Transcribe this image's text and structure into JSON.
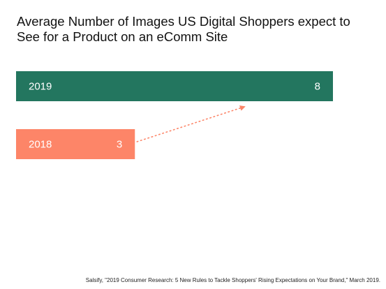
{
  "chart_data": {
    "type": "bar",
    "orientation": "horizontal",
    "title": "Average Number of Images US Digital Shoppers expect to See for a Product on an eComm Site",
    "categories": [
      "2019",
      "2018"
    ],
    "values": [
      8,
      3
    ],
    "xlim": [
      0,
      8
    ],
    "bar_colors": [
      "#23765f",
      "#fd8568"
    ],
    "arrow_color": "#fd8568",
    "annotation": "dotted arrow from the 2018 bar rising toward the 2019 bar",
    "grid": false,
    "legend": "none"
  },
  "source": "Salsify, \"2019 Consumer Research: 5 New Rules to Tackle Shoppers' Rising Expectations on Your Brand,\" March 2019."
}
